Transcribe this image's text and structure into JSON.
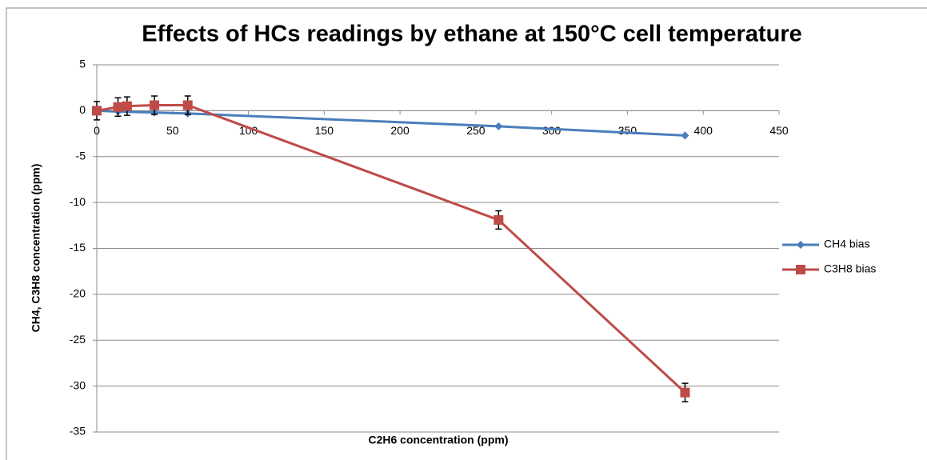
{
  "chart_data": {
    "type": "line",
    "title": "Effects of HCs readings by ethane at 150°C cell temperature",
    "x_label": "C2H6 concentration (ppm)",
    "y_label": "CH4, C3H8 concentration (ppm)",
    "xlim": [
      0,
      450
    ],
    "xticks": [
      0,
      50,
      100,
      150,
      200,
      250,
      300,
      350,
      400,
      450
    ],
    "ylim": [
      -35,
      5
    ],
    "yticks": [
      5,
      0,
      -5,
      -10,
      -15,
      -20,
      -25,
      -30,
      -35
    ],
    "grid": true,
    "legend": "right",
    "series": [
      {
        "name": "CH4 bias",
        "color": "#4a7ebb",
        "marker": "diamond",
        "x": [
          0,
          14,
          38,
          60,
          265,
          388
        ],
        "values": [
          0,
          -0.1,
          -0.2,
          -0.3,
          -1.7,
          -2.7
        ]
      },
      {
        "name": "C3H8 bias",
        "color": "#be4b48",
        "marker": "square",
        "x": [
          0,
          14,
          20,
          38,
          60,
          265,
          388
        ],
        "values": [
          0,
          0.4,
          0.5,
          0.6,
          0.6,
          -11.9,
          -30.7
        ],
        "errors": [
          1,
          1,
          1,
          1,
          1,
          1,
          1
        ]
      }
    ]
  }
}
